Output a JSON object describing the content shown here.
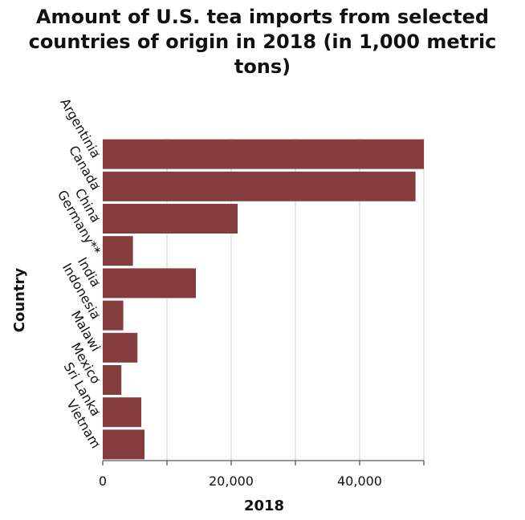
{
  "chart_data": {
    "type": "bar",
    "orientation": "horizontal",
    "title": "Amount of U.S. tea imports from selected\ncountries of origin in 2018 (in 1,000 metric\ntons)",
    "xlabel": "2018",
    "ylabel": "Country",
    "categories": [
      "Argentinia",
      "Canada",
      "China",
      "Germany**",
      "India",
      "Indonesia",
      "Malawi",
      "Mexico",
      "Sri Lanka",
      "Vietnam"
    ],
    "values": [
      50000,
      48700,
      21000,
      4700,
      14500,
      3200,
      5400,
      2900,
      6000,
      6500
    ],
    "xlim": [
      0,
      50000
    ],
    "xticks": [
      0,
      10000,
      20000,
      30000,
      40000,
      50000
    ],
    "xtick_labels": [
      "0",
      "",
      "20,000",
      "",
      "40,000",
      ""
    ],
    "grid": true,
    "bar_color": "#843c3c",
    "grid_color": "#cccccc",
    "axis_color": "#333333"
  }
}
